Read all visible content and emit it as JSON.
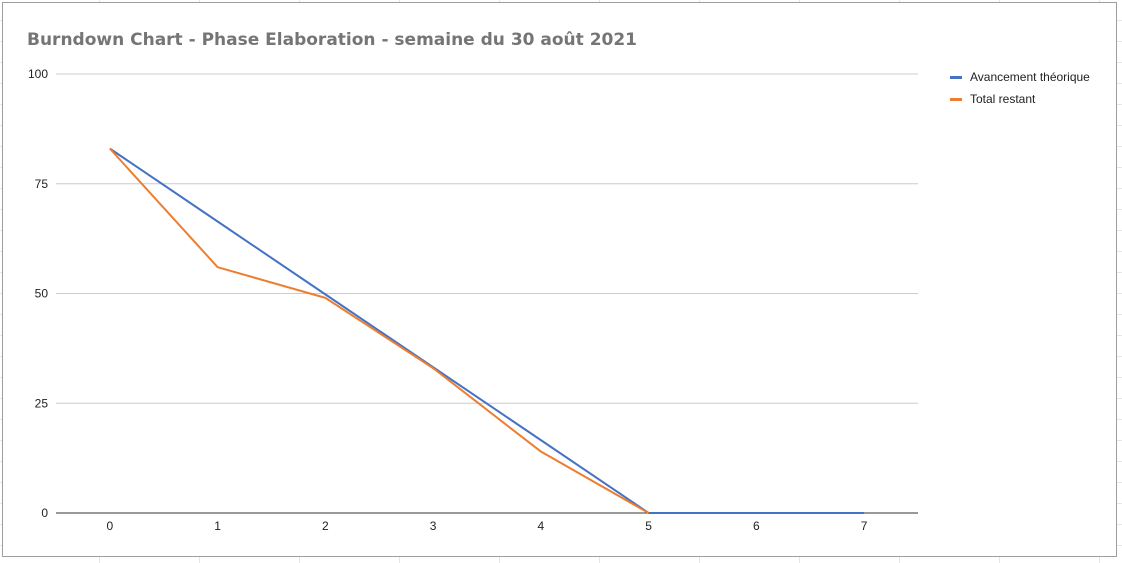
{
  "chart_data": {
    "type": "line",
    "title": "Burndown Chart - Phase Elaboration - semaine du 30 août 2021",
    "xlabel": "",
    "ylabel": "",
    "x": [
      0,
      1,
      2,
      3,
      4,
      5,
      6,
      7
    ],
    "x_tick_labels": [
      "0",
      "1",
      "2",
      "3",
      "4",
      "5",
      "6",
      "7"
    ],
    "y_tick_labels": [
      "0",
      "25",
      "50",
      "75",
      "100"
    ],
    "y_ticks": [
      0,
      25,
      50,
      75,
      100
    ],
    "ylim": [
      0,
      100
    ],
    "xlim": [
      -0.5,
      7.5
    ],
    "grid": true,
    "legend_position": "right",
    "series": [
      {
        "name": "Avancement théorique",
        "color": "#4472c4",
        "values": [
          83,
          66.4,
          49.8,
          33.2,
          16.6,
          0,
          0,
          0
        ]
      },
      {
        "name": "Total restant",
        "color": "#ed7d31",
        "values": [
          83,
          56,
          49,
          33,
          14,
          0,
          null,
          null
        ]
      }
    ]
  }
}
